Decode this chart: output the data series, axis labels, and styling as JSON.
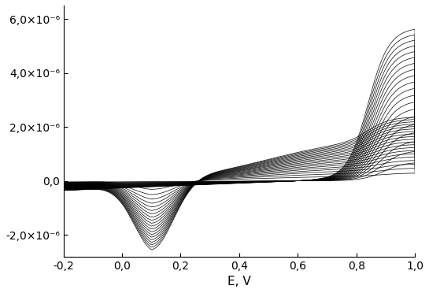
{
  "xlabel": "E, V",
  "xlim": [
    -0.2,
    1.0
  ],
  "ylim": [
    -2.8e-06,
    6.5e-06
  ],
  "yticks": [
    -2e-06,
    0.0,
    2e-06,
    4e-06,
    6e-06
  ],
  "ytick_labels": [
    "-2,0×10⁻⁶",
    "0,0",
    "2,0×10⁻⁶",
    "4,0×10⁻⁶",
    "6,0×10⁻⁶"
  ],
  "xticks": [
    -0.2,
    0.0,
    0.2,
    0.4,
    0.6,
    0.8,
    1.0
  ],
  "xtick_labels": [
    "-0,2",
    "0,0",
    "0,2",
    "0,4",
    "0,6",
    "0,8",
    "1,0"
  ],
  "n_cycles": 20,
  "line_color": "#000000",
  "background_color": "#ffffff",
  "figsize": [
    5.45,
    3.72
  ],
  "dpi": 100
}
